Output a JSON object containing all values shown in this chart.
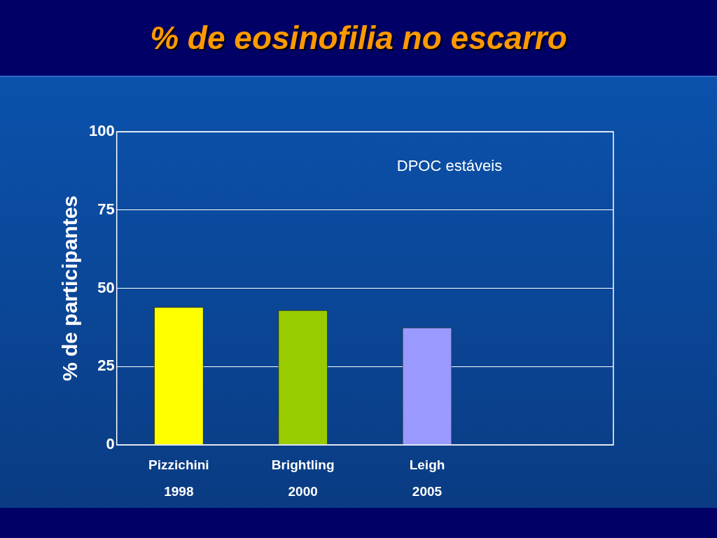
{
  "chart_data": {
    "type": "bar",
    "title": "% de eosinofilia no escarro",
    "ylabel": "% de participantes",
    "categories": [
      "Pizzichini 1998",
      "Brightling 2000",
      "Leigh 2005",
      null
    ],
    "values": [
      44,
      43,
      37.5,
      null
    ],
    "colors": [
      "#ffff00",
      "#99cc00",
      "#9999ff",
      null
    ],
    "ylim": [
      0,
      100
    ],
    "yticks": [
      0,
      25,
      50,
      75,
      100
    ],
    "grid": "y",
    "legend": false,
    "annotations": [
      "DPOC estáveis"
    ]
  }
}
